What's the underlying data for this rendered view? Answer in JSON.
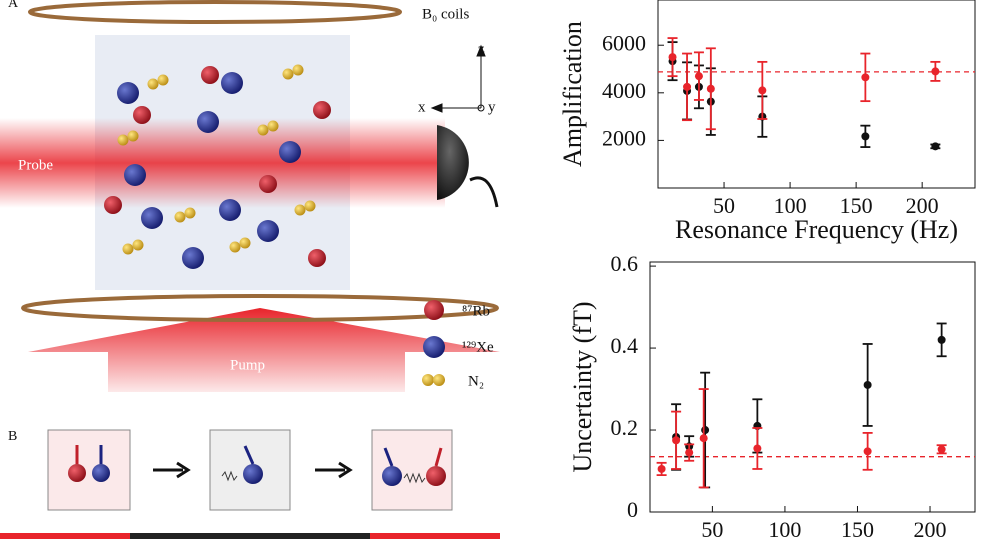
{
  "diagram": {
    "panel_a": "A",
    "coils": "B₀ coils",
    "axis_z": "z",
    "axis_x": "x",
    "axis_y": "y",
    "probe": "Probe",
    "pump": "Pump",
    "legend": [
      "⁸⁷Rb",
      "¹²⁹Xe",
      "N₂"
    ],
    "panel_b": "B"
  },
  "chart_data": [
    {
      "type": "errorbar",
      "xlabel": "Resonance Frequency (Hz)",
      "ylabel": "Amplification",
      "xlim": [
        0,
        240
      ],
      "xticks": [
        50,
        100,
        150,
        200
      ],
      "ylim": [
        0,
        7900
      ],
      "yticks": [
        2000,
        4000,
        6000
      ],
      "reference": 4880,
      "reference_color": "#e8242b",
      "series": [
        {
          "color": "#111111",
          "x": [
            11,
            22,
            31,
            40,
            79,
            157,
            210
          ],
          "values": [
            5330,
            4080,
            4250,
            3630,
            3000,
            2170,
            1750
          ],
          "errors": [
            800,
            1200,
            900,
            1400,
            850,
            450,
            80
          ]
        },
        {
          "color": "#e8242b",
          "x": [
            11,
            22,
            31,
            40,
            79,
            157,
            210
          ],
          "values": [
            5500,
            4250,
            4700,
            4170,
            4100,
            4650,
            4900
          ],
          "errors": [
            800,
            1400,
            1000,
            1700,
            1200,
            1000,
            400
          ]
        }
      ]
    },
    {
      "type": "errorbar",
      "xlabel": "Resonance Frequency (Hz)",
      "ylabel": "Uncertainty (fT)",
      "xlim": [
        7,
        231
      ],
      "xticks": [
        50,
        100,
        150,
        200
      ],
      "ylim": [
        0,
        0.61
      ],
      "yticks": [
        0,
        0.2,
        0.4,
        0.6
      ],
      "reference": 0.135,
      "reference_color": "#e8242b",
      "series": [
        {
          "color": "#111111",
          "x": [
            25,
            34,
            45,
            81,
            157,
            208
          ],
          "values": [
            0.183,
            0.16,
            0.2,
            0.21,
            0.31,
            0.42
          ],
          "errors": [
            0.08,
            0.025,
            0.14,
            0.065,
            0.1,
            0.04
          ]
        },
        {
          "color": "#e8242b",
          "x": [
            15,
            25,
            34,
            44,
            81,
            157,
            208
          ],
          "values": [
            0.105,
            0.175,
            0.145,
            0.18,
            0.155,
            0.148,
            0.153
          ],
          "errors": [
            0.015,
            0.07,
            0.02,
            0.12,
            0.05,
            0.045,
            0.01
          ]
        }
      ]
    }
  ]
}
